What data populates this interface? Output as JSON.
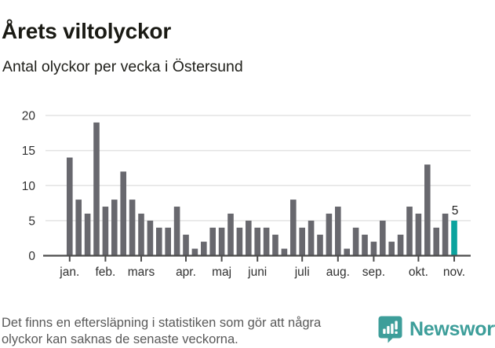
{
  "header": {
    "title": "Årets viltolyckor",
    "subtitle": "Antal olyckor per vecka i Östersund"
  },
  "chart_data": {
    "type": "bar",
    "title": "Årets viltolyckor",
    "subtitle": "Antal olyckor per vecka i Östersund",
    "x_unit": "vecka (week of year)",
    "values": [
      14,
      8,
      6,
      19,
      7,
      8,
      12,
      8,
      6,
      5,
      4,
      4,
      7,
      3,
      1,
      2,
      4,
      4,
      6,
      4,
      5,
      4,
      4,
      3,
      1,
      8,
      4,
      5,
      3,
      6,
      7,
      1,
      4,
      3,
      2,
      5,
      2,
      3,
      7,
      6,
      13,
      4,
      6,
      5
    ],
    "week_start_index": 1,
    "highlight_last_bar": true,
    "last_bar_label": "5",
    "ylim": [
      0,
      20
    ],
    "y_ticks": [
      0,
      5,
      10,
      15,
      20
    ],
    "x_tick_labels": [
      "jan.",
      "feb.",
      "mars",
      "apr.",
      "maj",
      "juni",
      "juli",
      "aug.",
      "sep.",
      "okt.",
      "nov."
    ],
    "x_tick_week_index": [
      1,
      5,
      9,
      14,
      18,
      22,
      27,
      31,
      35,
      40,
      44
    ],
    "grid": "horizontal",
    "legend": "none",
    "colors": {
      "bar": "#68686e",
      "highlight": "#0ba39e",
      "gridline": "#e3e3e3",
      "axis": "#4d4d4d",
      "tick_label": "#303030",
      "annotation": "#222222"
    }
  },
  "footer": {
    "note": "Det finns en eftersläpning i statistiken som gör att några olyckor kan saknas de senaste veckorna.",
    "brand": "Newsworthy",
    "brand_color": "#3d9e9a",
    "brand_icon": "speech-bubble-bar-chart-icon"
  }
}
